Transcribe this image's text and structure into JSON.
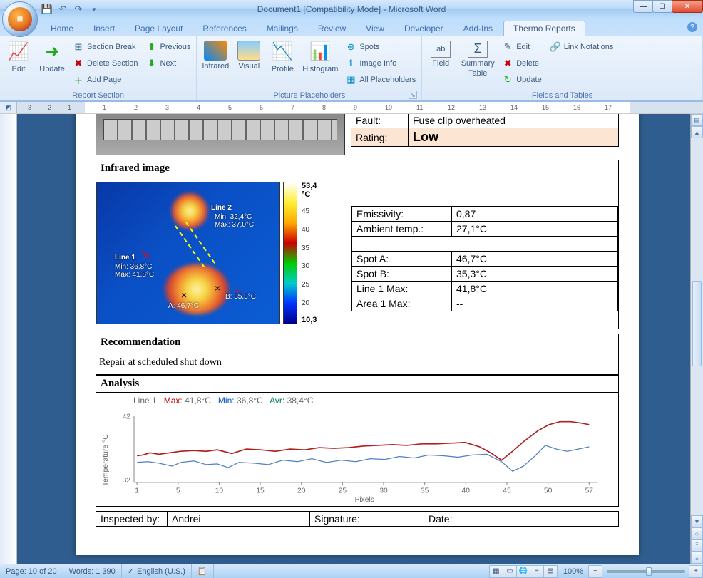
{
  "title": "Document1 [Compatibility Mode] - Microsoft Word",
  "tabs": [
    "Home",
    "Insert",
    "Page Layout",
    "References",
    "Mailings",
    "Review",
    "View",
    "Developer",
    "Add-Ins",
    "Thermo Reports"
  ],
  "active_tab": 9,
  "ribbon": {
    "g1": {
      "label": "Report Section",
      "edit": "Edit",
      "update": "Update",
      "sb": "Section Break",
      "ds": "Delete Section",
      "ap": "Add Page",
      "prev": "Previous",
      "next": "Next"
    },
    "g2": {
      "label": "Picture Placeholders",
      "ir": "Infrared",
      "vis": "Visual",
      "prof": "Profile",
      "hist": "Histogram",
      "spots": "Spots",
      "imginfo": "Image Info",
      "allpl": "All Placeholders"
    },
    "g3": {
      "label": "Fields and Tables",
      "field": "Field",
      "summ1": "Summary",
      "summ2": "Table",
      "edit": "Edit",
      "del": "Delete",
      "upd": "Update",
      "link": "Link Notations"
    }
  },
  "ruler_marks_left": [
    "3",
    "2",
    "1"
  ],
  "ruler_marks": [
    "1",
    "2",
    "3",
    "4",
    "5",
    "6",
    "7",
    "8",
    "9",
    "10",
    "11",
    "12",
    "13",
    "14",
    "15",
    "16",
    "17"
  ],
  "fault_table": {
    "fault_label": "Fault:",
    "fault_val": "Fuse clip overheated",
    "rating_label": "Rating:",
    "rating_val": "Low",
    "rating_bg": "#fde5d4"
  },
  "section_ir": "Infrared image",
  "colorbar": {
    "max": "53,4",
    "unit": "°C",
    "min": "10,3",
    "ticks": [
      "45",
      "40",
      "35",
      "30",
      "25",
      "20"
    ]
  },
  "thermal_overlay": {
    "line1": {
      "title": "Line 1",
      "min": "Min: 36,8°C",
      "max": "Max: 41,8°C"
    },
    "line2": {
      "title": "Line 2",
      "min": "Min: 32,4°C",
      "max": "Max: 37,0°C"
    },
    "spotA": "A: 46,7°C",
    "spotB": "B: 35,3°C"
  },
  "ir_table": [
    [
      "Emissivity:",
      "0,87"
    ],
    [
      "Ambient temp.:",
      "27,1°C"
    ],
    [
      "",
      ""
    ],
    [
      "Spot A:",
      "46,7°C"
    ],
    [
      "Spot B:",
      "35,3°C"
    ],
    [
      "Line 1 Max:",
      "41,8°C"
    ],
    [
      "Area 1 Max:",
      "--"
    ]
  ],
  "section_rec": "Recommendation",
  "rec_text": "Repair at scheduled shut down",
  "section_ana": "Analysis",
  "chart": {
    "series_label": "Line 1",
    "max_label": "Max:",
    "max_val": "41,8°C",
    "max_color": "#c00000",
    "min_label": "Min:",
    "min_val": "36,8°C",
    "min_color": "#0050c0",
    "avr_label": "Avr:",
    "avr_val": "38,4°C",
    "avr_color": "#008050",
    "y_label": "Temperature °C",
    "x_label": "Pixels",
    "y_ticks": [
      "42",
      "32"
    ],
    "x_ticks": [
      "1",
      "5",
      "10",
      "15",
      "20",
      "25",
      "30",
      "35",
      "40",
      "45",
      "50",
      "57"
    ],
    "line1_color": "#b02020",
    "line2_color": "#5080c0",
    "line1": "0,64 8,63 18,60 30,62 45,60 60,58 78,57 95,58 110,56 130,61 150,55 170,56 190,58 210,55 230,56 250,53 270,54 290,53 310,51 330,50 350,49 370,50 390,48 410,48 430,47 450,46 470,52 485,60 500,70 515,58 530,45 550,30 565,22 580,18 595,18 610,20 620,22",
    "line2": "0,73 15,72 30,74 48,78 60,73 78,71 95,76 110,75 125,80 140,73 160,74 180,76 200,70 220,72 240,68 260,73 280,70 300,72 320,68 340,69 360,65 380,67 400,63 420,64 440,66 460,63 480,62 500,72 515,85 530,78 545,65 560,50 575,55 590,58 605,55 620,52"
  },
  "footer_row": {
    "ins": "Inspected by:",
    "ins_v": "Andrei",
    "sig": "Signature:",
    "date": "Date:"
  },
  "status": {
    "page": "Page: 10 of 20",
    "words": "Words: 1 390",
    "lang": "English (U.S.)",
    "zoom": "100%"
  }
}
